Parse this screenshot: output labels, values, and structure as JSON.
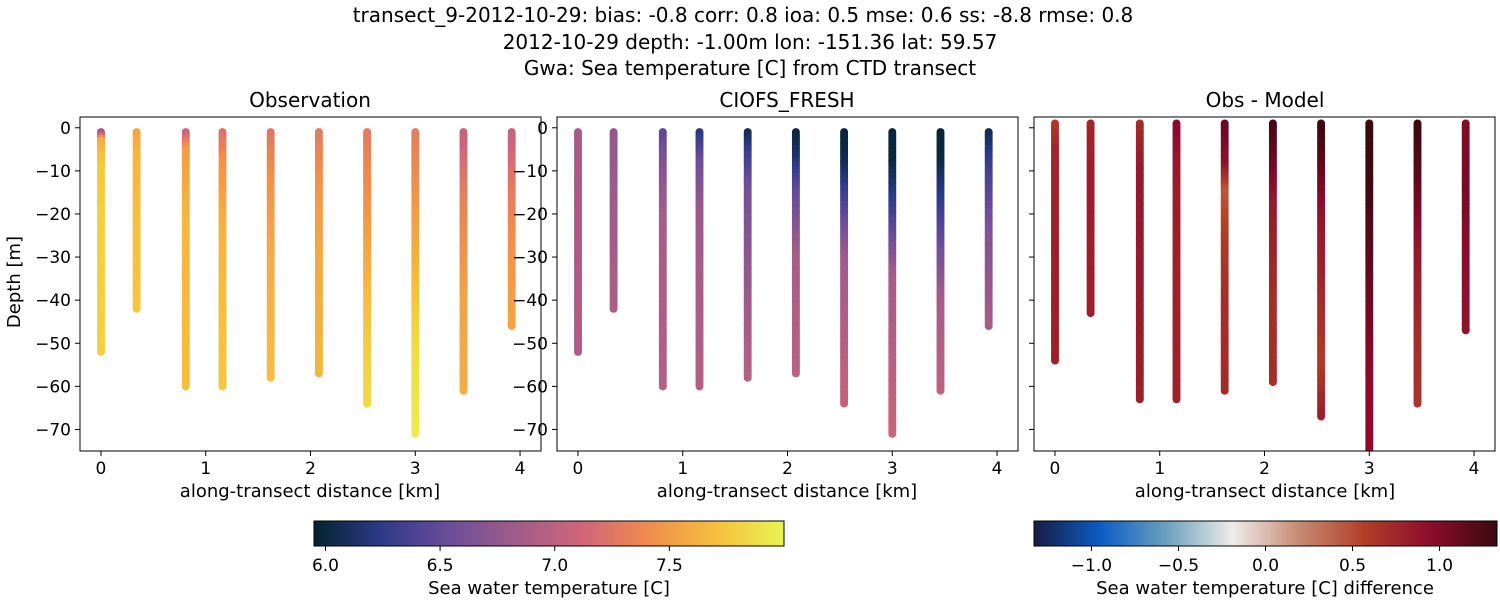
{
  "figure": {
    "title_line1": "transect_9-2012-10-29: bias: -0.8  corr: 0.8  ioa: 0.5  mse: 0.6  ss: -8.8  rmse: 0.8",
    "title_line2": "2012-10-29 depth: -1.00m lon: -151.36 lat: 59.57",
    "title_line3": "Gwa: Sea temperature [C] from CTD transect"
  },
  "chart_data": [
    {
      "type": "scatter",
      "title": "Observation",
      "xlabel": "along-transect distance [km]",
      "ylabel": "Depth [m]",
      "xlim": [
        -0.2,
        4.2
      ],
      "ylim": [
        -75,
        2.5
      ],
      "xticks": [
        0,
        1,
        2,
        3,
        4
      ],
      "yticks": [
        0,
        -10,
        -20,
        -30,
        -40,
        -50,
        -60,
        -70
      ],
      "colormap": "thermal",
      "clim": [
        5.95,
        8.0
      ],
      "stations": [
        {
          "x": 0.0,
          "max_depth": -52,
          "profile": [
            [
              -1,
              6.75
            ],
            [
              -3,
              7.6
            ],
            [
              -8,
              7.75
            ],
            [
              -25,
              7.8
            ],
            [
              -52,
              7.8
            ]
          ]
        },
        {
          "x": 0.34,
          "max_depth": -42,
          "profile": [
            [
              -1,
              7.55
            ],
            [
              -6,
              7.65
            ],
            [
              -25,
              7.72
            ],
            [
              -42,
              7.75
            ]
          ]
        },
        {
          "x": 0.81,
          "max_depth": -60,
          "profile": [
            [
              -1,
              7.05
            ],
            [
              -5,
              7.5
            ],
            [
              -20,
              7.65
            ],
            [
              -60,
              7.7
            ]
          ]
        },
        {
          "x": 1.16,
          "max_depth": -60,
          "profile": [
            [
              -1,
              7.2
            ],
            [
              -8,
              7.45
            ],
            [
              -25,
              7.65
            ],
            [
              -60,
              7.75
            ]
          ]
        },
        {
          "x": 1.62,
          "max_depth": -58,
          "profile": [
            [
              -1,
              7.25
            ],
            [
              -12,
              7.45
            ],
            [
              -30,
              7.6
            ],
            [
              -58,
              7.7
            ]
          ]
        },
        {
          "x": 2.08,
          "max_depth": -57,
          "profile": [
            [
              -1,
              7.3
            ],
            [
              -12,
              7.45
            ],
            [
              -30,
              7.58
            ],
            [
              -57,
              7.65
            ]
          ]
        },
        {
          "x": 2.54,
          "max_depth": -64,
          "profile": [
            [
              -1,
              7.3
            ],
            [
              -18,
              7.45
            ],
            [
              -40,
              7.7
            ],
            [
              -64,
              7.85
            ]
          ]
        },
        {
          "x": 3.0,
          "max_depth": -71,
          "profile": [
            [
              -1,
              7.3
            ],
            [
              -25,
              7.55
            ],
            [
              -50,
              7.85
            ],
            [
              -71,
              7.95
            ]
          ]
        },
        {
          "x": 3.46,
          "max_depth": -61,
          "profile": [
            [
              -1,
              7.05
            ],
            [
              -18,
              7.35
            ],
            [
              -40,
              7.55
            ],
            [
              -61,
              7.6
            ]
          ]
        },
        {
          "x": 3.92,
          "max_depth": -46,
          "profile": [
            [
              -1,
              7.05
            ],
            [
              -15,
              7.3
            ],
            [
              -28,
              7.45
            ],
            [
              -46,
              7.55
            ]
          ]
        }
      ]
    },
    {
      "type": "scatter",
      "title": "CIOFS_FRESH",
      "xlabel": "along-transect distance [km]",
      "ylabel": "",
      "xlim": [
        -0.2,
        4.2
      ],
      "ylim": [
        -75,
        2.5
      ],
      "xticks": [
        0,
        1,
        2,
        3,
        4
      ],
      "yticks": [
        0,
        -10,
        -20,
        -30,
        -40,
        -50,
        -60,
        -70
      ],
      "colormap": "thermal",
      "clim": [
        5.95,
        8.0
      ],
      "stations": [
        {
          "x": 0.0,
          "max_depth": -52,
          "profile": [
            [
              -1,
              6.85
            ],
            [
              -52,
              6.9
            ]
          ]
        },
        {
          "x": 0.34,
          "max_depth": -42,
          "profile": [
            [
              -1,
              6.75
            ],
            [
              -42,
              6.9
            ]
          ]
        },
        {
          "x": 0.81,
          "max_depth": -60,
          "profile": [
            [
              -1,
              6.45
            ],
            [
              -8,
              6.65
            ],
            [
              -20,
              6.85
            ],
            [
              -60,
              6.95
            ]
          ]
        },
        {
          "x": 1.16,
          "max_depth": -60,
          "profile": [
            [
              -1,
              6.2
            ],
            [
              -8,
              6.55
            ],
            [
              -20,
              6.8
            ],
            [
              -60,
              6.95
            ]
          ]
        },
        {
          "x": 1.62,
          "max_depth": -58,
          "profile": [
            [
              -1,
              6.05
            ],
            [
              -6,
              6.3
            ],
            [
              -15,
              6.6
            ],
            [
              -58,
              6.95
            ]
          ]
        },
        {
          "x": 2.08,
          "max_depth": -57,
          "profile": [
            [
              -1,
              6.0
            ],
            [
              -6,
              6.1
            ],
            [
              -15,
              6.5
            ],
            [
              -30,
              6.85
            ],
            [
              -57,
              6.98
            ]
          ]
        },
        {
          "x": 2.54,
          "max_depth": -64,
          "profile": [
            [
              -1,
              5.98
            ],
            [
              -8,
              6.05
            ],
            [
              -18,
              6.4
            ],
            [
              -30,
              6.8
            ],
            [
              -64,
              7.05
            ]
          ]
        },
        {
          "x": 3.0,
          "max_depth": -71,
          "profile": [
            [
              -1,
              5.98
            ],
            [
              -8,
              6.0
            ],
            [
              -20,
              6.35
            ],
            [
              -35,
              6.85
            ],
            [
              -71,
              7.08
            ]
          ]
        },
        {
          "x": 3.46,
          "max_depth": -61,
          "profile": [
            [
              -1,
              5.98
            ],
            [
              -8,
              6.02
            ],
            [
              -22,
              6.4
            ],
            [
              -40,
              6.85
            ],
            [
              -61,
              7.0
            ]
          ]
        },
        {
          "x": 3.92,
          "max_depth": -46,
          "profile": [
            [
              -1,
              6.05
            ],
            [
              -10,
              6.35
            ],
            [
              -25,
              6.65
            ],
            [
              -46,
              6.85
            ]
          ]
        }
      ]
    },
    {
      "type": "scatter",
      "title": "Obs - Model",
      "xlabel": "along-transect distance [km]",
      "ylabel": "",
      "xlim": [
        -0.2,
        4.2
      ],
      "ylim": [
        -75,
        2.5
      ],
      "xticks": [
        0,
        1,
        2,
        3,
        4
      ],
      "yticks": [
        0,
        -10,
        -20,
        -30,
        -40,
        -50,
        -60,
        -70
      ],
      "ytick_labels_visible": false,
      "colormap": "balance",
      "clim": [
        -1.33,
        1.33
      ],
      "stations": [
        {
          "x": 0.0,
          "max_depth": -54,
          "profile": [
            [
              1,
              0.6
            ],
            [
              -5,
              0.75
            ],
            [
              -30,
              0.8
            ],
            [
              -54,
              0.8
            ]
          ]
        },
        {
          "x": 0.34,
          "max_depth": -43,
          "profile": [
            [
              1,
              0.75
            ],
            [
              -10,
              0.82
            ],
            [
              -43,
              0.8
            ]
          ]
        },
        {
          "x": 0.81,
          "max_depth": -63,
          "profile": [
            [
              1,
              0.7
            ],
            [
              -10,
              0.85
            ],
            [
              -30,
              0.85
            ],
            [
              -63,
              0.8
            ]
          ]
        },
        {
          "x": 1.16,
          "max_depth": -63,
          "profile": [
            [
              1,
              1.0
            ],
            [
              -8,
              0.85
            ],
            [
              -25,
              0.8
            ],
            [
              -63,
              0.78
            ]
          ]
        },
        {
          "x": 1.62,
          "max_depth": -61,
          "profile": [
            [
              1,
              1.15
            ],
            [
              -8,
              0.95
            ],
            [
              -15,
              0.45
            ],
            [
              -25,
              0.6
            ],
            [
              -40,
              0.7
            ],
            [
              -61,
              0.72
            ]
          ]
        },
        {
          "x": 2.08,
          "max_depth": -59,
          "profile": [
            [
              1,
              1.3
            ],
            [
              -8,
              1.1
            ],
            [
              -18,
              0.85
            ],
            [
              -40,
              0.7
            ],
            [
              -59,
              0.7
            ]
          ]
        },
        {
          "x": 2.54,
          "max_depth": -67,
          "profile": [
            [
              1,
              1.33
            ],
            [
              -8,
              1.2
            ],
            [
              -20,
              0.9
            ],
            [
              -40,
              0.72
            ],
            [
              -55,
              0.6
            ],
            [
              -67,
              0.8
            ]
          ]
        },
        {
          "x": 3.0,
          "max_depth": -75,
          "profile": [
            [
              1,
              1.33
            ],
            [
              -15,
              1.3
            ],
            [
              -40,
              1.1
            ],
            [
              -60,
              0.95
            ],
            [
              -75,
              0.95
            ]
          ]
        },
        {
          "x": 3.46,
          "max_depth": -64,
          "profile": [
            [
              1,
              1.33
            ],
            [
              -10,
              1.2
            ],
            [
              -30,
              0.85
            ],
            [
              -50,
              0.7
            ],
            [
              -64,
              0.65
            ]
          ]
        },
        {
          "x": 3.92,
          "max_depth": -47,
          "profile": [
            [
              1,
              1.0
            ],
            [
              -15,
              1.05
            ],
            [
              -30,
              0.95
            ],
            [
              -47,
              0.9
            ]
          ]
        }
      ]
    }
  ],
  "colorbars": [
    {
      "label": "Sea water temperature [C]",
      "ticks": [
        "6.0",
        "6.5",
        "7.0",
        "7.5"
      ],
      "tick_values": [
        6.0,
        6.5,
        7.0,
        7.5
      ],
      "range": [
        5.95,
        8.0
      ],
      "colormap": "thermal"
    },
    {
      "label": "Sea water temperature [C] difference",
      "ticks": [
        "−1.0",
        "−0.5",
        "0.0",
        "0.5",
        "1.0"
      ],
      "tick_values": [
        -1.0,
        -0.5,
        0.0,
        0.5,
        1.0
      ],
      "range": [
        -1.33,
        1.33
      ],
      "colormap": "balance"
    }
  ],
  "colormaps": {
    "thermal": [
      "#04232e",
      "#2d3a8a",
      "#6b4d9a",
      "#a15c8a",
      "#d0657a",
      "#f08c4c",
      "#f6bf3e",
      "#e9f552"
    ],
    "balance": [
      "#181c43",
      "#0b5cc4",
      "#6ba0bd",
      "#eeecea",
      "#c88b75",
      "#b13f28",
      "#8c0c2d",
      "#3c0911"
    ]
  }
}
